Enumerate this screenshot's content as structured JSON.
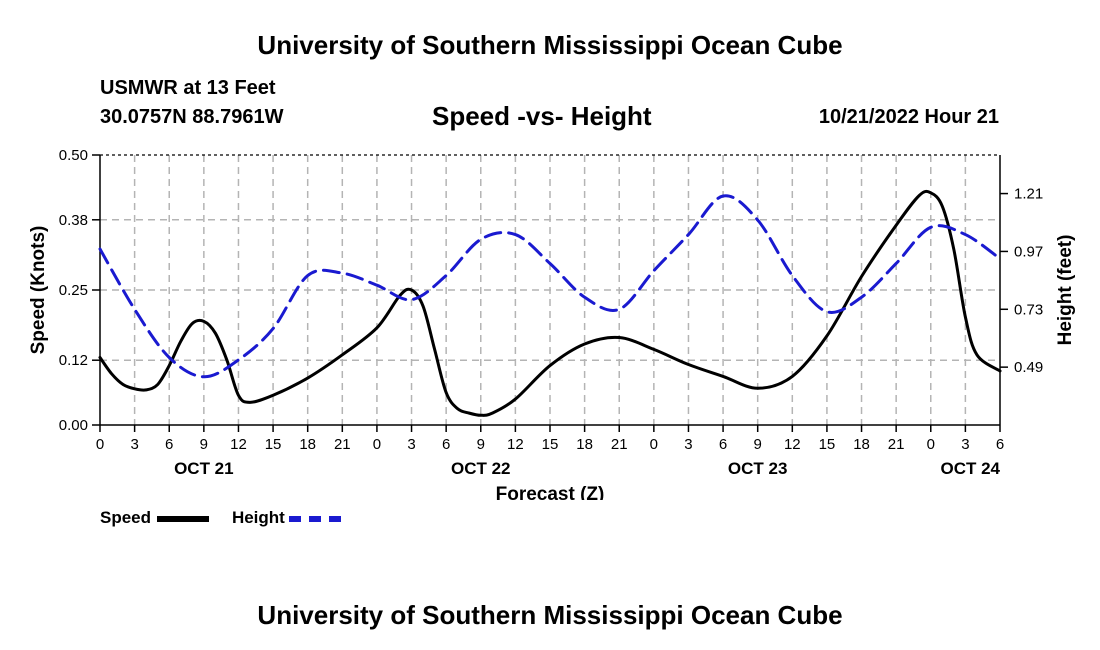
{
  "page": {
    "title_top": "University of Southern Mississippi Ocean Cube",
    "title_bottom": "University of Southern Mississippi Ocean Cube",
    "station": "USMWR at 13 Feet",
    "coords": "30.0757N  88.7961W",
    "date": "10/21/2022 Hour 21"
  },
  "colors": {
    "speed": "#000000",
    "height": "#1a1ad0",
    "grid": "#b4b4b4"
  },
  "chart_data": {
    "type": "line",
    "title": "Speed -vs- Height",
    "xlabel": "Forecast (Z)",
    "ylabel_left": "Speed (Knots)",
    "ylabel_right": "Height (feet)",
    "x_range": [
      0,
      78
    ],
    "x_ticks": [
      0,
      3,
      6,
      9,
      12,
      15,
      18,
      21,
      24,
      27,
      30,
      33,
      36,
      39,
      42,
      45,
      48,
      51,
      54,
      57,
      60,
      63,
      66,
      69,
      72,
      75,
      78
    ],
    "x_tick_labels": [
      "0",
      "3",
      "6",
      "9",
      "12",
      "15",
      "18",
      "21",
      "0",
      "3",
      "6",
      "9",
      "12",
      "15",
      "18",
      "21",
      "0",
      "3",
      "6",
      "9",
      "12",
      "15",
      "18",
      "21",
      "0",
      "3",
      "6"
    ],
    "date_labels": [
      {
        "x": 9,
        "label": "OCT 21"
      },
      {
        "x": 33,
        "label": "OCT 22"
      },
      {
        "x": 57,
        "label": "OCT 23"
      },
      {
        "x": 78,
        "label": "OCT 24"
      }
    ],
    "y_left": {
      "range": [
        0,
        0.5
      ],
      "ticks": [
        0.0,
        0.12,
        0.25,
        0.38,
        0.5
      ],
      "tick_labels": [
        "0.00",
        "0.12",
        "0.25",
        "0.38",
        "0.50"
      ]
    },
    "y_right": {
      "range": [
        0.25,
        1.37
      ],
      "ticks": [
        0.49,
        0.73,
        0.97,
        1.21
      ],
      "tick_labels": [
        "0.49",
        "0.73",
        "0.97",
        "1.21"
      ]
    },
    "legend": [
      {
        "name": "Speed",
        "style": "solid"
      },
      {
        "name": "Height",
        "style": "dashed"
      }
    ],
    "series": [
      {
        "name": "Speed",
        "axis": "left",
        "style": "solid",
        "x": [
          0,
          1,
          2,
          3,
          4,
          5,
          6,
          7,
          8,
          9,
          10,
          11,
          12,
          13,
          15,
          18,
          21,
          24,
          26,
          27,
          28,
          29,
          30,
          31,
          32,
          33,
          34,
          36,
          39,
          42,
          45,
          48,
          51,
          54,
          57,
          60,
          63,
          66,
          69,
          71,
          72,
          73,
          74,
          75,
          76,
          78
        ],
        "values": [
          0.125,
          0.095,
          0.075,
          0.067,
          0.065,
          0.075,
          0.11,
          0.155,
          0.188,
          0.192,
          0.17,
          0.12,
          0.055,
          0.042,
          0.055,
          0.087,
          0.13,
          0.18,
          0.24,
          0.25,
          0.22,
          0.14,
          0.06,
          0.03,
          0.022,
          0.018,
          0.022,
          0.048,
          0.11,
          0.15,
          0.162,
          0.14,
          0.112,
          0.09,
          0.068,
          0.09,
          0.165,
          0.275,
          0.37,
          0.425,
          0.43,
          0.405,
          0.325,
          0.2,
          0.13,
          0.1
        ],
        "note": "series runs across two rows of x data; values listed in order"
      },
      {
        "name": "Height",
        "axis": "right",
        "style": "dashed",
        "x": [
          0,
          3,
          6,
          9,
          12,
          15,
          18,
          21,
          24,
          27,
          30,
          33,
          36,
          39,
          42,
          45,
          48,
          51,
          54,
          57,
          60,
          63,
          66,
          69,
          72,
          75,
          78
        ],
        "values": [
          0.98,
          0.73,
          0.53,
          0.45,
          0.52,
          0.65,
          0.87,
          0.88,
          0.83,
          0.77,
          0.87,
          1.02,
          1.04,
          0.92,
          0.78,
          0.73,
          0.89,
          1.04,
          1.2,
          1.1,
          0.87,
          0.72,
          0.78,
          0.92,
          1.07,
          1.04,
          0.94
        ]
      }
    ]
  }
}
